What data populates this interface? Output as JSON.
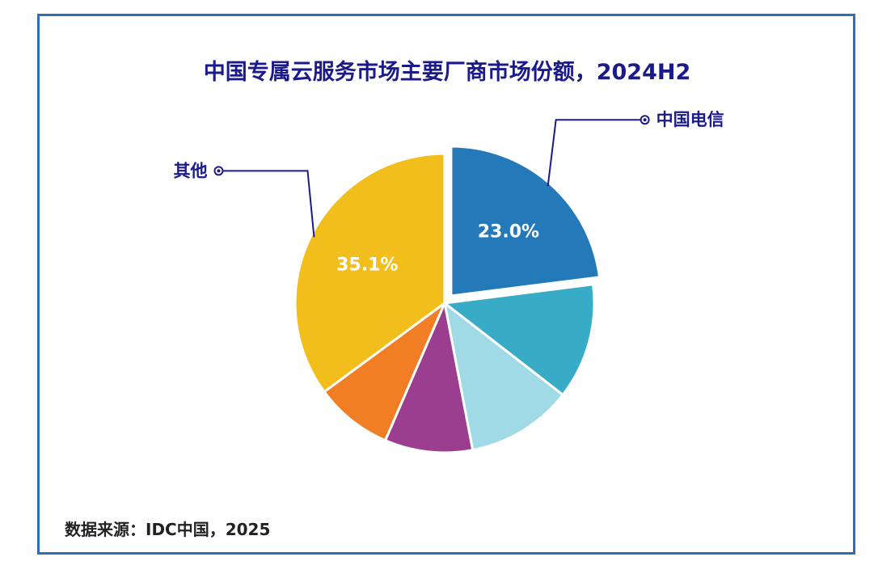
{
  "chart_data": {
    "type": "pie",
    "title": "中国专属云服务市场主要厂商市场份额，2024H2",
    "slices": [
      {
        "label": "中国电信",
        "value": 23.0,
        "value_label": "23.0%",
        "color": "#2479b9",
        "exploded": true
      },
      {
        "label": "",
        "value": 12.5,
        "value_label": "",
        "color": "#38acc7",
        "exploded": false
      },
      {
        "label": "",
        "value": 11.5,
        "value_label": "",
        "color": "#a0dae6",
        "exploded": false
      },
      {
        "label": "",
        "value": 9.5,
        "value_label": "",
        "color": "#9b3e8f",
        "exploded": false
      },
      {
        "label": "",
        "value": 8.4,
        "value_label": "",
        "color": "#f17d24",
        "exploded": false
      },
      {
        "label": "其他",
        "value": 35.1,
        "value_label": "35.1%",
        "color": "#f2be1c",
        "exploded": false
      }
    ]
  },
  "source": "数据来源：IDC中国，2025"
}
